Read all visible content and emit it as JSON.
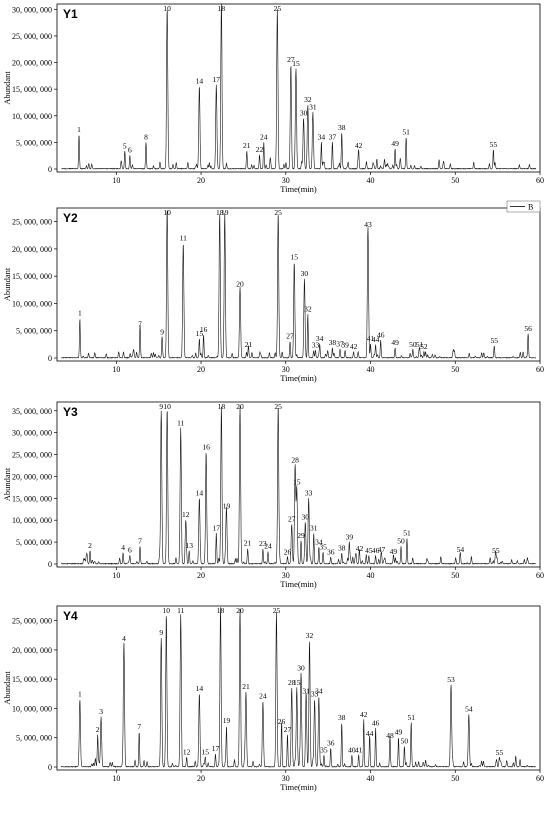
{
  "legend": {
    "series_name": "B"
  },
  "chart_data": [
    {
      "type": "line",
      "panel_label": "Y1",
      "xlabel": "Time(min)",
      "ylabel": "Abundant",
      "xlim": [
        3,
        60
      ],
      "ylim": [
        0,
        31000000
      ],
      "xticks": [
        10,
        20,
        30,
        40,
        50,
        60
      ],
      "yticks": [
        0,
        5000000,
        10000000,
        15000000,
        20000000,
        25000000,
        30000000
      ],
      "ytick_labels": [
        "0",
        "5, 000, 000",
        "10, 000, 000",
        "15, 000, 000",
        "20, 000, 000",
        "25, 000, 000",
        "30, 000, 000"
      ],
      "peaks": [
        {
          "label": "1",
          "t": 5.6,
          "y": 6400000
        },
        {
          "label": "5",
          "t": 11.0,
          "y": 3300000
        },
        {
          "label": "6",
          "t": 11.6,
          "y": 2500000
        },
        {
          "label": "8",
          "t": 13.5,
          "y": 5000000
        },
        {
          "label": "10",
          "t": 16.0,
          "y": 30000000
        },
        {
          "label": "14",
          "t": 19.8,
          "y": 15500000
        },
        {
          "label": "17",
          "t": 21.8,
          "y": 15800000
        },
        {
          "label": "18",
          "t": 22.4,
          "y": 30500000
        },
        {
          "label": "21",
          "t": 25.4,
          "y": 3400000
        },
        {
          "label": "22",
          "t": 26.9,
          "y": 2600000
        },
        {
          "label": "24",
          "t": 27.4,
          "y": 5000000
        },
        {
          "label": "25",
          "t": 29.0,
          "y": 30000000
        },
        {
          "label": "27",
          "t": 30.6,
          "y": 19500000
        },
        {
          "label": "15",
          "t": 31.2,
          "y": 18800000
        },
        {
          "label": "30",
          "t": 32.1,
          "y": 9500000
        },
        {
          "label": "32",
          "t": 32.6,
          "y": 12000000
        },
        {
          "label": "31",
          "t": 33.2,
          "y": 10600000
        },
        {
          "label": "34",
          "t": 34.2,
          "y": 5000000
        },
        {
          "label": "37",
          "t": 35.5,
          "y": 5000000
        },
        {
          "label": "38",
          "t": 36.6,
          "y": 6800000
        },
        {
          "label": "42",
          "t": 38.6,
          "y": 3400000
        },
        {
          "label": "49",
          "t": 42.9,
          "y": 3800000
        },
        {
          "label": "51",
          "t": 44.2,
          "y": 5900000
        },
        {
          "label": "55",
          "t": 54.5,
          "y": 3600000
        }
      ]
    },
    {
      "type": "line",
      "panel_label": "Y2",
      "xlabel": "Time(min)",
      "ylabel": "Abundant",
      "xlim": [
        3,
        60
      ],
      "ylim": [
        0,
        27500000
      ],
      "xticks": [
        10,
        20,
        30,
        40,
        50,
        60
      ],
      "yticks": [
        0,
        5000000,
        10000000,
        15000000,
        20000000,
        25000000
      ],
      "ytick_labels": [
        "0",
        "5, 000, 000",
        "10, 000, 000",
        "15, 000, 000",
        "20, 000, 000",
        "25, 000, 000"
      ],
      "peaks": [
        {
          "label": "1",
          "t": 5.7,
          "y": 7200000
        },
        {
          "label": "7",
          "t": 12.8,
          "y": 5200000
        },
        {
          "label": "9",
          "t": 15.4,
          "y": 3800000
        },
        {
          "label": "10",
          "t": 16.0,
          "y": 26500000
        },
        {
          "label": "11",
          "t": 17.9,
          "y": 21000000
        },
        {
          "label": "15",
          "t": 19.8,
          "y": 3500000
        },
        {
          "label": "16",
          "t": 20.3,
          "y": 4200000
        },
        {
          "label": "18",
          "t": 22.2,
          "y": 26500000
        },
        {
          "label": "19",
          "t": 22.8,
          "y": 26500000
        },
        {
          "label": "20",
          "t": 24.6,
          "y": 12600000
        },
        {
          "label": "21",
          "t": 25.6,
          "y": 1500000
        },
        {
          "label": "25",
          "t": 29.1,
          "y": 26500000
        },
        {
          "label": "27",
          "t": 30.5,
          "y": 3000000
        },
        {
          "label": "15",
          "t": 31.0,
          "y": 17500000
        },
        {
          "label": "30",
          "t": 32.2,
          "y": 14500000
        },
        {
          "label": "32",
          "t": 32.6,
          "y": 8000000
        },
        {
          "label": "33",
          "t": 33.5,
          "y": 1400000
        },
        {
          "label": "34",
          "t": 34.0,
          "y": 2600000
        },
        {
          "label": "38",
          "t": 35.5,
          "y": 1800000
        },
        {
          "label": "37",
          "t": 36.4,
          "y": 1600000
        },
        {
          "label": "39",
          "t": 37.0,
          "y": 1400000
        },
        {
          "label": "42",
          "t": 38.0,
          "y": 1100000
        },
        {
          "label": "43",
          "t": 39.7,
          "y": 23500000
        },
        {
          "label": "41",
          "t": 40.0,
          "y": 2600000
        },
        {
          "label": "44",
          "t": 40.6,
          "y": 2400000
        },
        {
          "label": "46",
          "t": 41.2,
          "y": 3200000
        },
        {
          "label": "49",
          "t": 42.9,
          "y": 1800000
        },
        {
          "label": "50",
          "t": 45.0,
          "y": 1500000
        },
        {
          "label": "51",
          "t": 45.8,
          "y": 1500000
        },
        {
          "label": "52",
          "t": 46.3,
          "y": 1100000
        },
        {
          "label": "55",
          "t": 54.6,
          "y": 2200000
        },
        {
          "label": "56",
          "t": 58.6,
          "y": 4400000
        }
      ]
    },
    {
      "type": "line",
      "panel_label": "Y3",
      "xlabel": "Time(min)",
      "ylabel": "Abundant",
      "xlim": [
        3,
        60
      ],
      "ylim": [
        0,
        37000000
      ],
      "xticks": [
        10,
        20,
        30,
        40,
        50,
        60
      ],
      "yticks": [
        0,
        5000000,
        10000000,
        15000000,
        20000000,
        25000000,
        30000000,
        35000000
      ],
      "ytick_labels": [
        "0",
        "5, 000, 000",
        "10, 000, 000",
        "15, 000, 000",
        "20, 000, 000",
        "25, 000, 000",
        "30, 000, 000",
        "35, 000, 000"
      ],
      "peaks": [
        {
          "label": "2",
          "t": 6.9,
          "y": 3000000
        },
        {
          "label": "4",
          "t": 10.8,
          "y": 2500000
        },
        {
          "label": "6",
          "t": 11.6,
          "y": 1900000
        },
        {
          "label": "7",
          "t": 12.8,
          "y": 4000000
        },
        {
          "label": "9",
          "t": 15.3,
          "y": 35000000
        },
        {
          "label": "10",
          "t": 16.0,
          "y": 35500000
        },
        {
          "label": "11",
          "t": 17.6,
          "y": 31000000
        },
        {
          "label": "12",
          "t": 18.2,
          "y": 10000000
        },
        {
          "label": "13",
          "t": 18.6,
          "y": 3000000
        },
        {
          "label": "14",
          "t": 19.8,
          "y": 15000000
        },
        {
          "label": "16",
          "t": 20.6,
          "y": 25500000
        },
        {
          "label": "17",
          "t": 21.8,
          "y": 7000000
        },
        {
          "label": "18",
          "t": 22.4,
          "y": 36000000
        },
        {
          "label": "19",
          "t": 23.0,
          "y": 12000000
        },
        {
          "label": "20",
          "t": 24.6,
          "y": 36000000
        },
        {
          "label": "21",
          "t": 25.5,
          "y": 3500000
        },
        {
          "label": "23",
          "t": 27.3,
          "y": 3400000
        },
        {
          "label": "24",
          "t": 27.9,
          "y": 2800000
        },
        {
          "label": "25",
          "t": 29.1,
          "y": 36000000
        },
        {
          "label": "26",
          "t": 30.2,
          "y": 1500000
        },
        {
          "label": "27",
          "t": 30.7,
          "y": 9000000
        },
        {
          "label": "28",
          "t": 31.1,
          "y": 22500000
        },
        {
          "label": "15",
          "t": 31.3,
          "y": 17500000
        },
        {
          "label": "29",
          "t": 31.8,
          "y": 5200000
        },
        {
          "label": "30",
          "t": 32.3,
          "y": 9500000
        },
        {
          "label": "33",
          "t": 32.7,
          "y": 15000000
        },
        {
          "label": "31",
          "t": 33.3,
          "y": 7000000
        },
        {
          "label": "34",
          "t": 33.9,
          "y": 3800000
        },
        {
          "label": "35",
          "t": 34.4,
          "y": 2600000
        },
        {
          "label": "36",
          "t": 35.3,
          "y": 1500000
        },
        {
          "label": "38",
          "t": 36.6,
          "y": 2400000
        },
        {
          "label": "39",
          "t": 37.5,
          "y": 4900000
        },
        {
          "label": "42",
          "t": 38.7,
          "y": 2300000
        },
        {
          "label": "45",
          "t": 39.8,
          "y": 1800000
        },
        {
          "label": "46",
          "t": 40.6,
          "y": 1800000
        },
        {
          "label": "47",
          "t": 41.3,
          "y": 2000000
        },
        {
          "label": "49",
          "t": 42.7,
          "y": 1600000
        },
        {
          "label": "50",
          "t": 43.6,
          "y": 4000000
        },
        {
          "label": "51",
          "t": 44.3,
          "y": 5800000
        },
        {
          "label": "54",
          "t": 50.6,
          "y": 2000000
        },
        {
          "label": "55",
          "t": 54.8,
          "y": 1800000
        }
      ]
    },
    {
      "type": "line",
      "panel_label": "Y4",
      "xlabel": "Time(min)",
      "ylabel": "Abundant",
      "xlim": [
        3,
        60
      ],
      "ylim": [
        0,
        27500000
      ],
      "xticks": [
        10,
        20,
        30,
        40,
        50,
        60
      ],
      "yticks": [
        0,
        5000000,
        10000000,
        15000000,
        20000000,
        25000000
      ],
      "ytick_labels": [
        "0",
        "5, 000, 000",
        "10, 000, 000",
        "15, 000, 000",
        "20, 000, 000",
        "25, 000, 000"
      ],
      "peaks": [
        {
          "label": "1",
          "t": 5.7,
          "y": 11500000
        },
        {
          "label": "2",
          "t": 7.8,
          "y": 5500000
        },
        {
          "label": "3",
          "t": 8.2,
          "y": 8500000
        },
        {
          "label": "4",
          "t": 10.9,
          "y": 21000000
        },
        {
          "label": "7",
          "t": 12.7,
          "y": 6000000
        },
        {
          "label": "9",
          "t": 15.3,
          "y": 22000000
        },
        {
          "label": "10",
          "t": 15.9,
          "y": 26000000
        },
        {
          "label": "11",
          "t": 17.6,
          "y": 26000000
        },
        {
          "label": "12",
          "t": 18.3,
          "y": 1600000
        },
        {
          "label": "14",
          "t": 19.8,
          "y": 12500000
        },
        {
          "label": "15",
          "t": 20.5,
          "y": 1600000
        },
        {
          "label": "17",
          "t": 21.7,
          "y": 2200000
        },
        {
          "label": "18",
          "t": 22.3,
          "y": 26500000
        },
        {
          "label": "19",
          "t": 23.0,
          "y": 7000000
        },
        {
          "label": "20",
          "t": 24.6,
          "y": 27000000
        },
        {
          "label": "21",
          "t": 25.3,
          "y": 12800000
        },
        {
          "label": "24",
          "t": 27.3,
          "y": 11200000
        },
        {
          "label": "25",
          "t": 28.9,
          "y": 26500000
        },
        {
          "label": "26",
          "t": 29.5,
          "y": 6800000
        },
        {
          "label": "27",
          "t": 30.2,
          "y": 5500000
        },
        {
          "label": "28",
          "t": 30.7,
          "y": 13500000
        },
        {
          "label": "15",
          "t": 31.3,
          "y": 13500000
        },
        {
          "label": "30",
          "t": 31.8,
          "y": 16000000
        },
        {
          "label": "31",
          "t": 32.4,
          "y": 12000000
        },
        {
          "label": "32",
          "t": 32.8,
          "y": 21500000
        },
        {
          "label": "33",
          "t": 33.4,
          "y": 11500000
        },
        {
          "label": "34",
          "t": 33.9,
          "y": 12000000
        },
        {
          "label": "35",
          "t": 34.5,
          "y": 2000000
        },
        {
          "label": "36",
          "t": 35.3,
          "y": 3200000
        },
        {
          "label": "38",
          "t": 36.6,
          "y": 7500000
        },
        {
          "label": "40",
          "t": 37.8,
          "y": 2000000
        },
        {
          "label": "41",
          "t": 38.6,
          "y": 2000000
        },
        {
          "label": "42",
          "t": 39.2,
          "y": 8000000
        },
        {
          "label": "44",
          "t": 39.9,
          "y": 4800000
        },
        {
          "label": "46",
          "t": 40.6,
          "y": 6600000
        },
        {
          "label": "48",
          "t": 42.3,
          "y": 4400000
        },
        {
          "label": "49",
          "t": 43.3,
          "y": 5000000
        },
        {
          "label": "50",
          "t": 44.0,
          "y": 3500000
        },
        {
          "label": "51",
          "t": 44.8,
          "y": 7500000
        },
        {
          "label": "53",
          "t": 49.5,
          "y": 14000000
        },
        {
          "label": "54",
          "t": 51.6,
          "y": 9000000
        },
        {
          "label": "55",
          "t": 55.2,
          "y": 1500000
        }
      ]
    }
  ]
}
